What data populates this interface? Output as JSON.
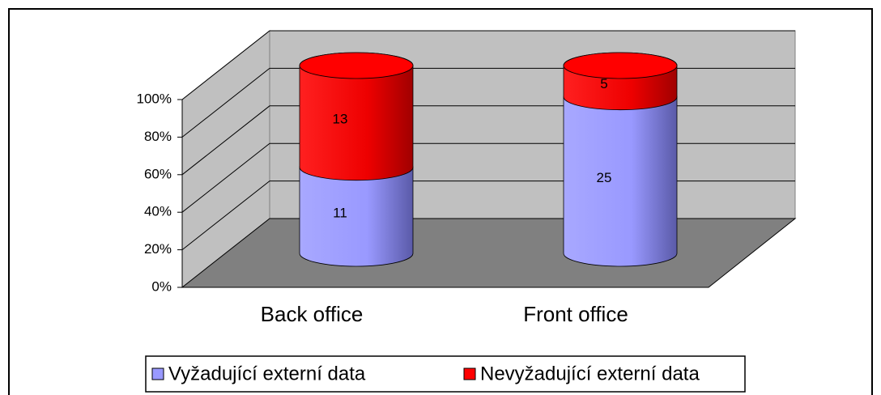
{
  "chart_data": {
    "type": "bar3d-cylinder-stacked-percent",
    "categories": [
      "Back office",
      "Front office"
    ],
    "series": [
      {
        "name": "Vyžadující externí data",
        "color": "#9999ff",
        "values": [
          11,
          25
        ]
      },
      {
        "name": "Nevyžadující externí data",
        "color": "#ff0000",
        "values": [
          13,
          5
        ]
      }
    ],
    "ylim": [
      0,
      100
    ],
    "yticks": [
      {
        "value": 0,
        "label": "0%"
      },
      {
        "value": 20,
        "label": "20%"
      },
      {
        "value": 40,
        "label": "40%"
      },
      {
        "value": 60,
        "label": "60%"
      },
      {
        "value": 80,
        "label": "80%"
      },
      {
        "value": 100,
        "label": "100%"
      }
    ],
    "grid": true,
    "legend": "bottom"
  }
}
